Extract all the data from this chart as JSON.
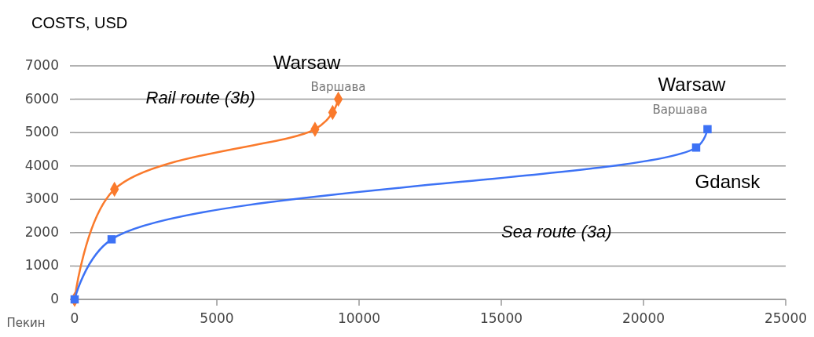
{
  "chart_data": {
    "type": "line",
    "ylabel": "COSTS, USD",
    "xlim": [
      0,
      25000
    ],
    "xticks": [
      0,
      5000,
      10000,
      15000,
      20000,
      25000
    ],
    "ylim": [
      0,
      7000
    ],
    "yticks": [
      0,
      1000,
      2000,
      3000,
      4000,
      5000,
      6000,
      7000
    ],
    "grid": "y",
    "series": [
      {
        "name": "Rail route (3b)",
        "color": "#fa7a2c",
        "marker": "diamond",
        "x": [
          0,
          1400,
          8450,
          9070,
          9270
        ],
        "values": [
          0,
          3300,
          5100,
          5600,
          6000
        ]
      },
      {
        "name": "Sea route (3a)",
        "color": "#3d72f5",
        "marker": "square",
        "x": [
          0,
          1300,
          21850,
          22250
        ],
        "values": [
          0,
          1800,
          4550,
          5100
        ]
      }
    ],
    "annotations": [
      {
        "text": "Warsaw",
        "x": 9270,
        "y": 6000
      },
      {
        "text": "Варшава",
        "x": 9270,
        "y": 6000
      },
      {
        "text": "Warsaw",
        "x": 22250,
        "y": 5100
      },
      {
        "text": "Варшава",
        "x": 22250,
        "y": 5100
      },
      {
        "text": "Gdansk",
        "x": 21850,
        "y": 4550
      },
      {
        "text": "Пекин",
        "x": 0,
        "y": 0
      }
    ]
  }
}
